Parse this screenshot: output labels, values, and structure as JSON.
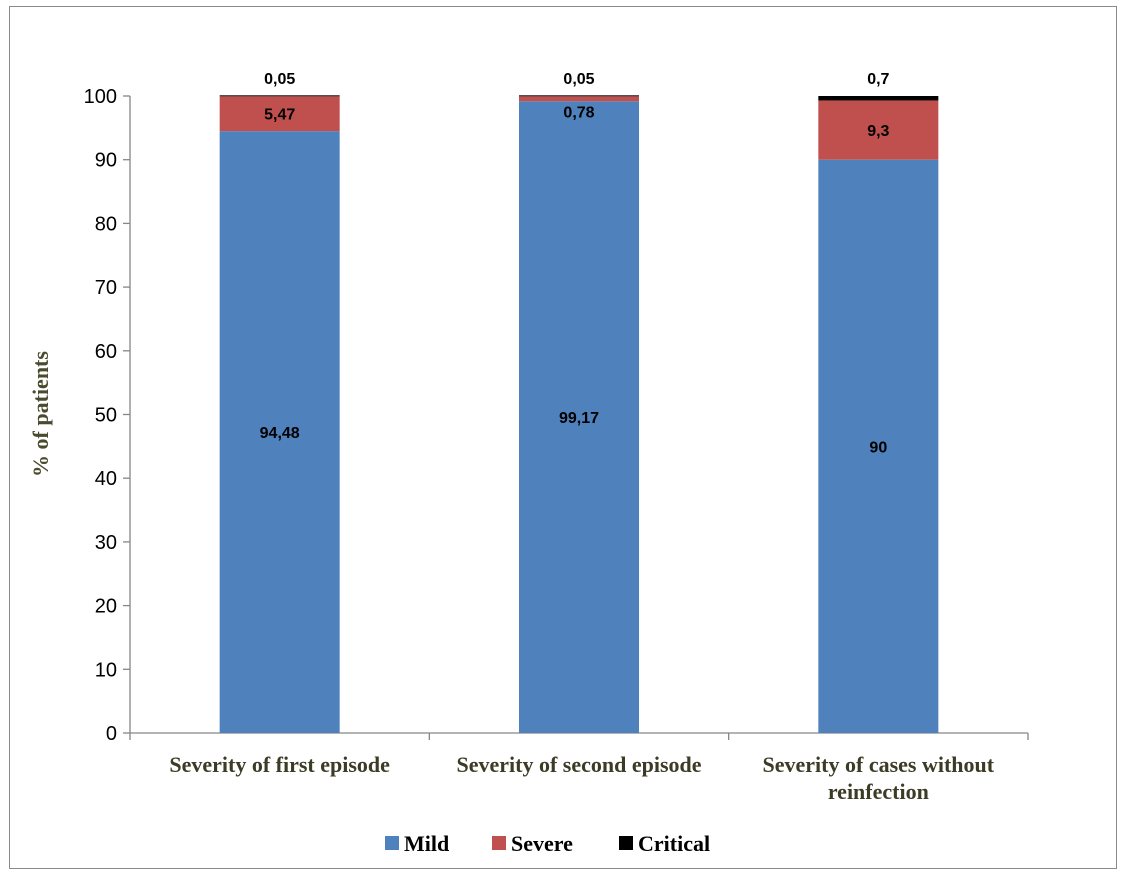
{
  "chart_data": {
    "type": "bar",
    "stacked": true,
    "title": "",
    "xlabel": "",
    "ylabel": "% of patients",
    "ylim": [
      0,
      100
    ],
    "yticks": [
      0,
      10,
      20,
      30,
      40,
      50,
      60,
      70,
      80,
      90,
      100
    ],
    "grid": false,
    "legend_position": "bottom",
    "categories": [
      [
        "Severity of first episode"
      ],
      [
        "Severity of second episode"
      ],
      [
        "Severity of cases without",
        "reinfection"
      ]
    ],
    "series": [
      {
        "name": "Mild",
        "color": "#4f81bd",
        "values": [
          94.48,
          99.17,
          90
        ],
        "labels": [
          "94,48",
          "99,17",
          "90"
        ]
      },
      {
        "name": "Severe",
        "color": "#c0504d",
        "values": [
          5.47,
          0.78,
          9.3
        ],
        "labels": [
          "5,47",
          "0,78",
          "9,3"
        ]
      },
      {
        "name": "Critical",
        "color": "#000000",
        "values": [
          0.05,
          0.05,
          0.7
        ],
        "labels": [
          "0,05",
          "0,05",
          "0,7"
        ]
      }
    ]
  }
}
